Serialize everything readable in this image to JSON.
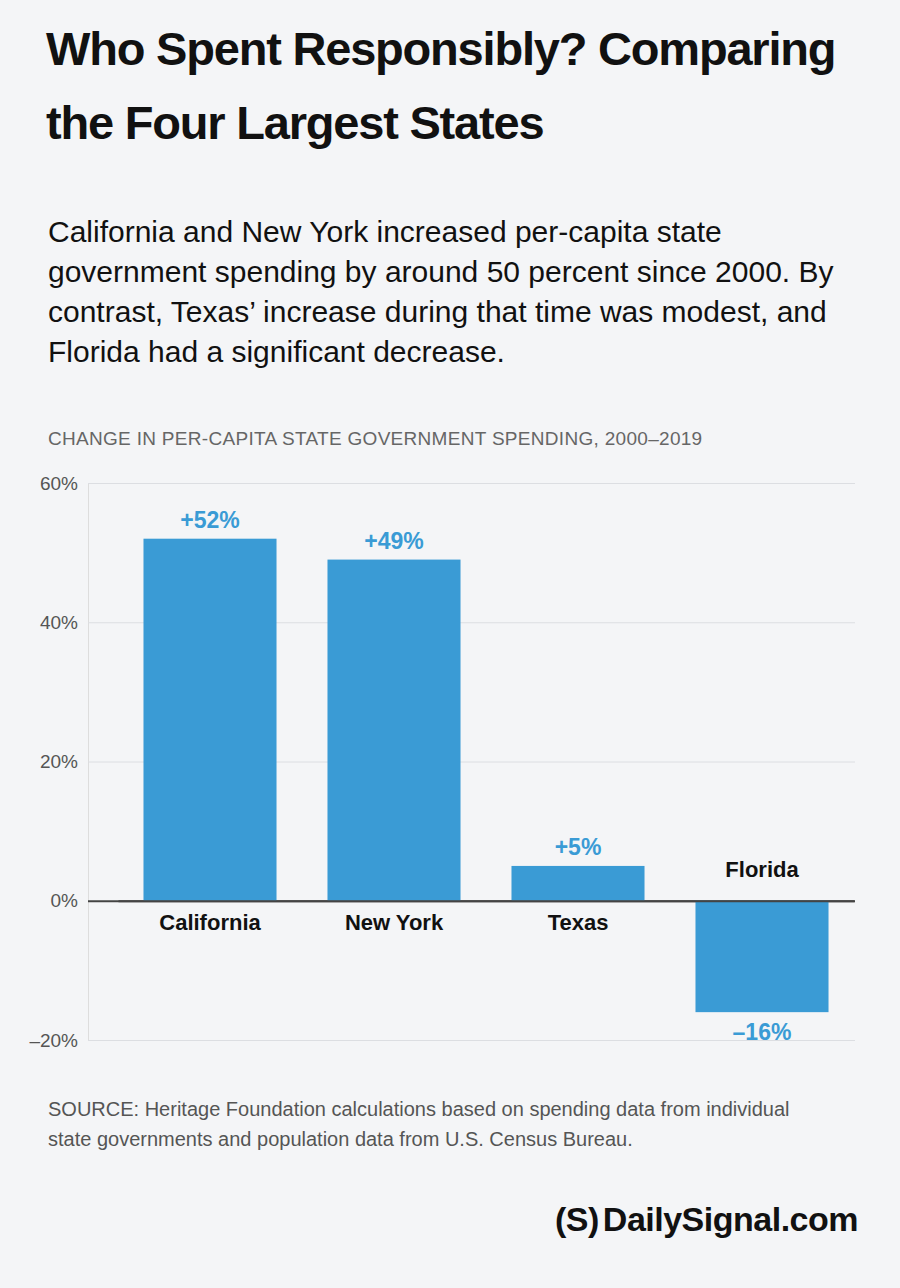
{
  "chart_data": {
    "type": "bar",
    "title": "Who Spent Responsibly? Comparing the Four Largest States",
    "subtitle": "California and New York increased per-capita state government spending by around 50 percent since 2000. By contrast, Texas’ increase during that time was modest, and Florida had a significant decrease.",
    "ylabel": "CHANGE IN PER-CAPITA STATE GOVERNMENT SPENDING, 2000–2019",
    "categories": [
      "California",
      "New York",
      "Texas",
      "Florida"
    ],
    "values": [
      52,
      49,
      5,
      -16
    ],
    "value_labels": [
      "+52%",
      "+49%",
      "+5%",
      "–16%"
    ],
    "color": "#3a9bd5",
    "ylim": [
      -20,
      60
    ],
    "yticks": [
      {
        "value": -20,
        "label": "–20%"
      },
      {
        "value": 0,
        "label": "0%"
      },
      {
        "value": 20,
        "label": "20%"
      },
      {
        "value": 40,
        "label": "40%"
      },
      {
        "value": 60,
        "label": "60%"
      }
    ],
    "grid": true,
    "data_labels": true,
    "source": "SOURCE: Heritage Foundation calculations based on spending data from individual state governments and population data from U.S. Census Bureau.",
    "credit_mark": "(S)",
    "credit": "DailySignal.com"
  }
}
